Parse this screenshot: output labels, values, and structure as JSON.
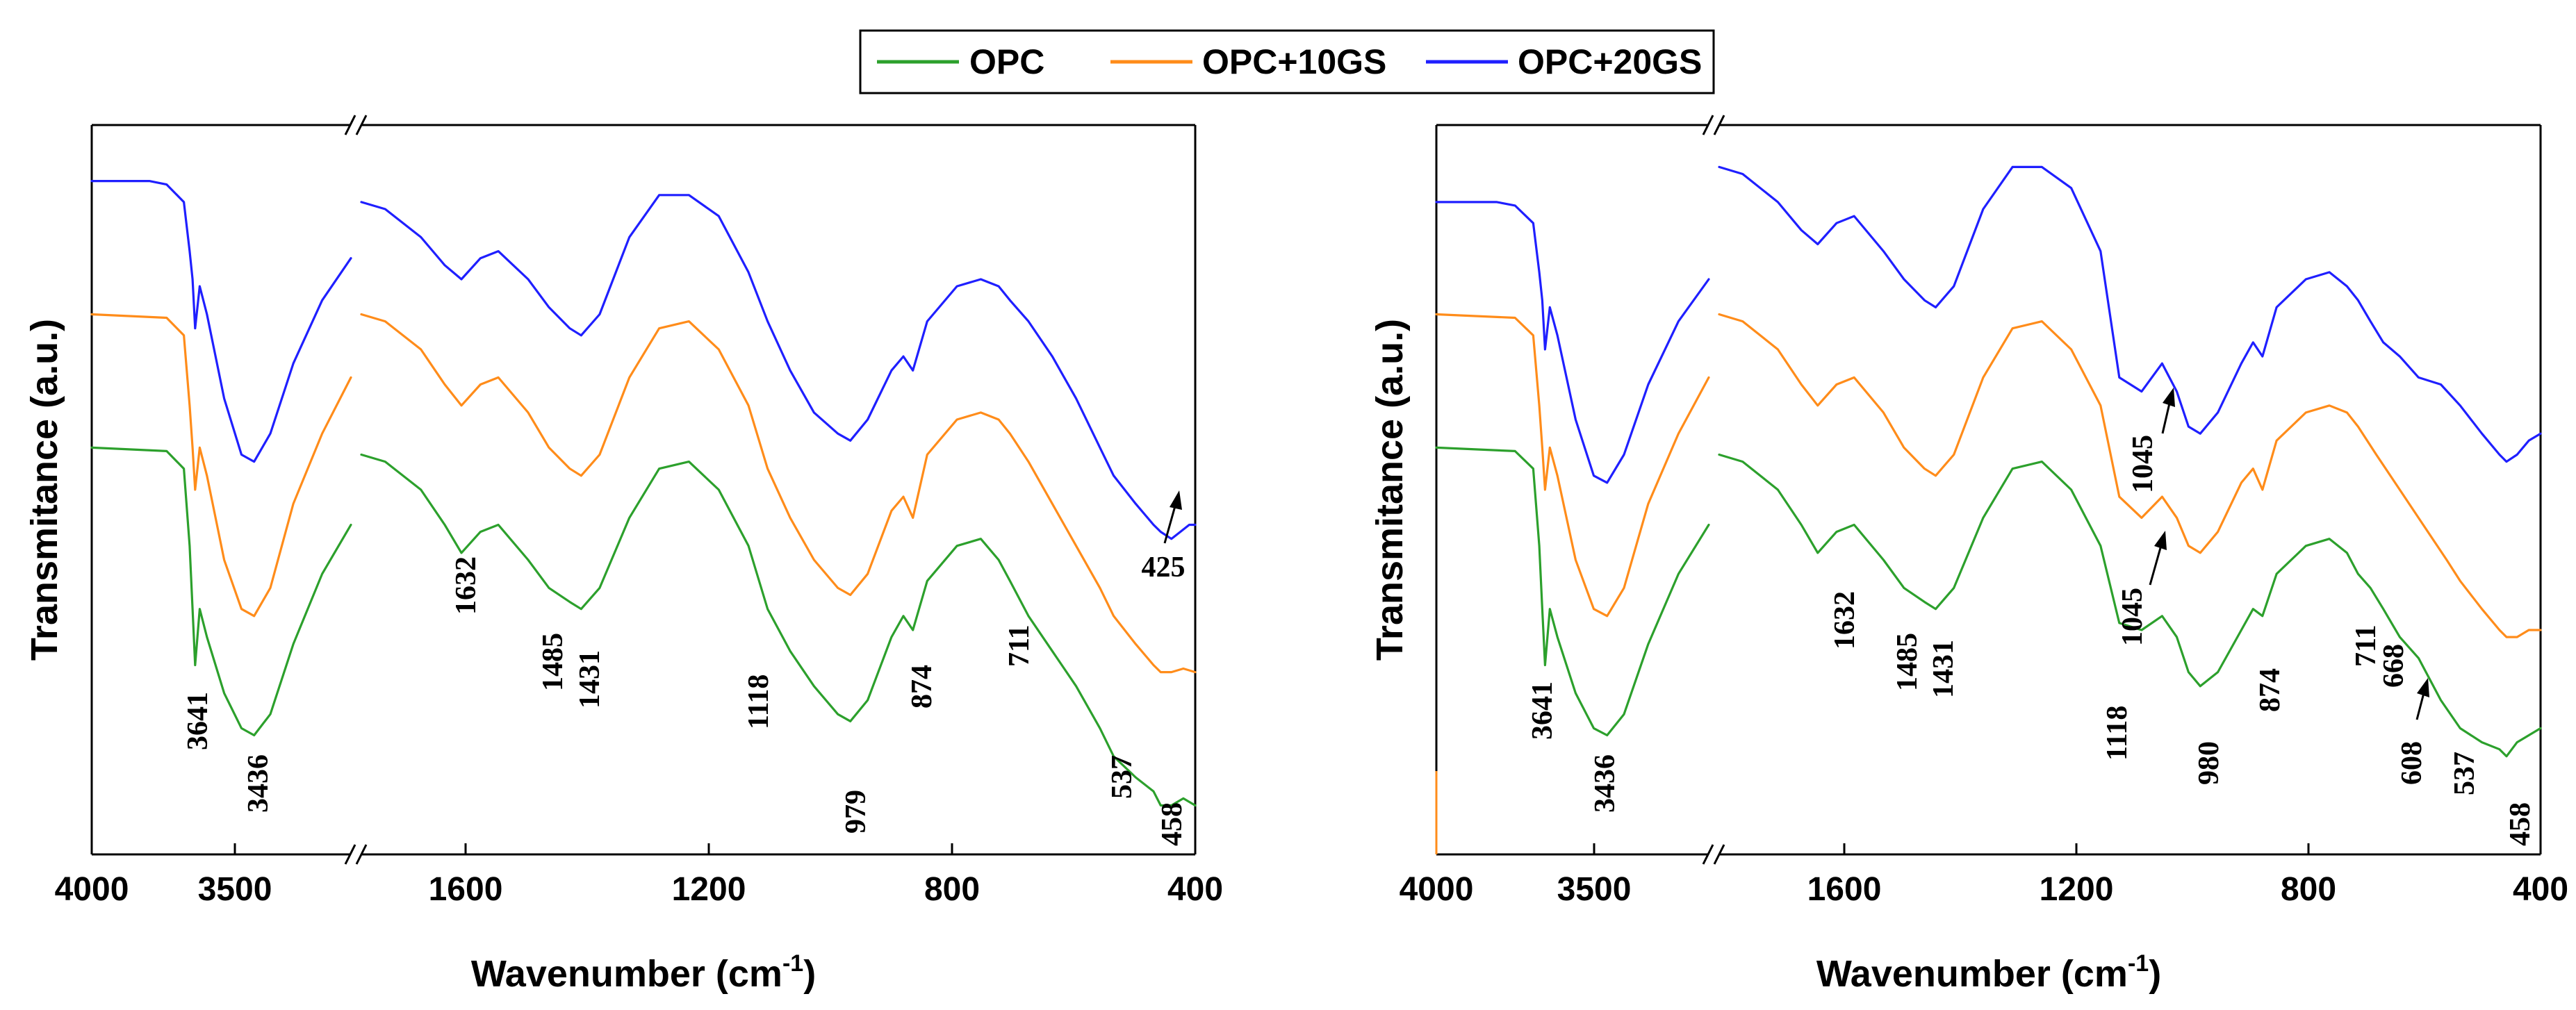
{
  "legend": {
    "entries": [
      {
        "name": "OPC",
        "color": "#2ca02c"
      },
      {
        "name": "OPC+10GS",
        "color": "#ff8c1a"
      },
      {
        "name": "OPC+20GS",
        "color": "#1f1fff"
      }
    ]
  },
  "chart_data": [
    {
      "type": "line",
      "xlabel": "Wavenumber (cm-1)",
      "ylabel": "Transmitance (a.u.)",
      "x_axis_reversed": true,
      "x_axis_break": [
        3100,
        1800
      ],
      "xlim_left_segment": [
        4000,
        3100
      ],
      "xlim_right_segment": [
        1800,
        400
      ],
      "x_ticks": [
        4000,
        3500,
        1600,
        1200,
        800,
        400
      ],
      "ylim": [
        0,
        1
      ],
      "legend_placement": "top-center",
      "grid": false,
      "series": [
        {
          "name": "OPC",
          "color": "#2ca02c",
          "x": [
            4000,
            3740,
            3680,
            3660,
            3650,
            3641,
            3625,
            3600,
            3540,
            3480,
            3436,
            3380,
            3300,
            3200,
            3100,
            1800,
            1760,
            1700,
            1660,
            1632,
            1600,
            1570,
            1520,
            1485,
            1450,
            1431,
            1400,
            1350,
            1300,
            1250,
            1200,
            1150,
            1118,
            1080,
            1040,
            1000,
            979,
            950,
            910,
            890,
            874,
            850,
            800,
            760,
            730,
            711,
            680,
            640,
            600,
            560,
            537,
            500,
            470,
            458,
            440,
            420,
            400
          ],
          "y": [
            0.56,
            0.555,
            0.53,
            0.42,
            0.33,
            0.25,
            0.33,
            0.29,
            0.21,
            0.16,
            0.15,
            0.18,
            0.28,
            0.38,
            0.45,
            0.55,
            0.54,
            0.5,
            0.45,
            0.41,
            0.44,
            0.45,
            0.4,
            0.36,
            0.34,
            0.33,
            0.36,
            0.46,
            0.53,
            0.54,
            0.5,
            0.42,
            0.33,
            0.27,
            0.22,
            0.18,
            0.17,
            0.2,
            0.29,
            0.32,
            0.3,
            0.37,
            0.42,
            0.43,
            0.4,
            0.37,
            0.32,
            0.27,
            0.22,
            0.16,
            0.12,
            0.09,
            0.07,
            0.05,
            0.05,
            0.06,
            0.05
          ]
        },
        {
          "name": "OPC+10GS",
          "color": "#ff8c1a",
          "x": [
            4000,
            3740,
            3680,
            3660,
            3650,
            3641,
            3625,
            3600,
            3540,
            3480,
            3436,
            3380,
            3300,
            3200,
            3100,
            1800,
            1760,
            1700,
            1660,
            1632,
            1600,
            1570,
            1520,
            1485,
            1450,
            1431,
            1400,
            1350,
            1300,
            1250,
            1200,
            1150,
            1118,
            1080,
            1040,
            1000,
            979,
            950,
            910,
            890,
            874,
            850,
            800,
            760,
            730,
            711,
            680,
            640,
            600,
            560,
            537,
            500,
            470,
            458,
            440,
            420,
            400
          ],
          "y": [
            0.75,
            0.745,
            0.72,
            0.62,
            0.56,
            0.5,
            0.56,
            0.52,
            0.4,
            0.33,
            0.32,
            0.36,
            0.48,
            0.58,
            0.66,
            0.75,
            0.74,
            0.7,
            0.65,
            0.62,
            0.65,
            0.66,
            0.61,
            0.56,
            0.53,
            0.52,
            0.55,
            0.66,
            0.73,
            0.74,
            0.7,
            0.62,
            0.53,
            0.46,
            0.4,
            0.36,
            0.35,
            0.38,
            0.47,
            0.49,
            0.46,
            0.55,
            0.6,
            0.61,
            0.6,
            0.58,
            0.54,
            0.48,
            0.42,
            0.36,
            0.32,
            0.28,
            0.25,
            0.24,
            0.24,
            0.245,
            0.24
          ]
        },
        {
          "name": "OPC+20GS",
          "color": "#1f1fff",
          "x": [
            4000,
            3800,
            3740,
            3680,
            3660,
            3650,
            3641,
            3625,
            3600,
            3540,
            3480,
            3436,
            3380,
            3300,
            3200,
            3100,
            1800,
            1760,
            1700,
            1660,
            1632,
            1600,
            1570,
            1520,
            1485,
            1450,
            1431,
            1400,
            1350,
            1300,
            1250,
            1200,
            1150,
            1118,
            1080,
            1040,
            1000,
            979,
            950,
            910,
            890,
            874,
            850,
            800,
            760,
            730,
            711,
            680,
            640,
            600,
            560,
            537,
            500,
            470,
            458,
            440,
            425,
            410,
            400
          ],
          "y": [
            0.94,
            0.94,
            0.935,
            0.91,
            0.84,
            0.8,
            0.73,
            0.79,
            0.75,
            0.63,
            0.55,
            0.54,
            0.58,
            0.68,
            0.77,
            0.83,
            0.91,
            0.9,
            0.86,
            0.82,
            0.8,
            0.83,
            0.84,
            0.8,
            0.76,
            0.73,
            0.72,
            0.75,
            0.86,
            0.92,
            0.92,
            0.89,
            0.81,
            0.74,
            0.67,
            0.61,
            0.58,
            0.57,
            0.6,
            0.67,
            0.69,
            0.67,
            0.74,
            0.79,
            0.8,
            0.79,
            0.77,
            0.74,
            0.69,
            0.63,
            0.56,
            0.52,
            0.48,
            0.45,
            0.44,
            0.43,
            0.44,
            0.45,
            0.45
          ]
        }
      ],
      "annotations": [
        {
          "text": "3641",
          "x": 3641
        },
        {
          "text": "3436",
          "x": 3436
        },
        {
          "text": "1632",
          "x": 1632
        },
        {
          "text": "1485",
          "x": 1485
        },
        {
          "text": "1431",
          "x": 1431
        },
        {
          "text": "1118",
          "x": 1118
        },
        {
          "text": "979",
          "x": 979
        },
        {
          "text": "874",
          "x": 874
        },
        {
          "text": "711",
          "x": 711
        },
        {
          "text": "537",
          "x": 537
        },
        {
          "text": "458",
          "x": 458
        },
        {
          "text": "425",
          "x": 425,
          "arrow": true
        }
      ]
    },
    {
      "type": "line",
      "xlabel": "Wavenumber (cm-1)",
      "ylabel": "Transmitance (a.u.)",
      "x_axis_reversed": true,
      "x_axis_break": [
        3100,
        1800
      ],
      "xlim_left_segment": [
        4000,
        3100
      ],
      "xlim_right_segment": [
        1800,
        400
      ],
      "x_ticks": [
        4000,
        3500,
        1600,
        1200,
        800,
        400
      ],
      "ylim": [
        0,
        1
      ],
      "grid": false,
      "series": [
        {
          "name": "OPC",
          "color": "#2ca02c",
          "x": [
            4000,
            3740,
            3680,
            3660,
            3650,
            3641,
            3625,
            3600,
            3540,
            3480,
            3436,
            3380,
            3300,
            3200,
            3100,
            1800,
            1760,
            1700,
            1660,
            1632,
            1600,
            1570,
            1520,
            1485,
            1450,
            1431,
            1400,
            1350,
            1300,
            1250,
            1200,
            1150,
            1118,
            1080,
            1045,
            1020,
            1000,
            980,
            950,
            910,
            890,
            874,
            850,
            800,
            760,
            730,
            711,
            690,
            668,
            640,
            608,
            570,
            537,
            500,
            470,
            458,
            440,
            420,
            400
          ],
          "y": [
            0.56,
            0.555,
            0.53,
            0.42,
            0.33,
            0.25,
            0.33,
            0.29,
            0.21,
            0.16,
            0.15,
            0.18,
            0.28,
            0.38,
            0.45,
            0.55,
            0.54,
            0.5,
            0.45,
            0.41,
            0.44,
            0.45,
            0.4,
            0.36,
            0.34,
            0.33,
            0.36,
            0.46,
            0.53,
            0.54,
            0.5,
            0.42,
            0.31,
            0.3,
            0.32,
            0.29,
            0.24,
            0.22,
            0.24,
            0.3,
            0.33,
            0.32,
            0.38,
            0.42,
            0.43,
            0.41,
            0.38,
            0.36,
            0.33,
            0.29,
            0.26,
            0.2,
            0.16,
            0.14,
            0.13,
            0.12,
            0.14,
            0.15,
            0.16
          ]
        },
        {
          "name": "OPC+10GS",
          "color": "#ff8c1a",
          "x": [
            4000,
            3740,
            3680,
            3660,
            3650,
            3641,
            3625,
            3600,
            3540,
            3480,
            3436,
            3380,
            3300,
            3200,
            3100,
            1800,
            1760,
            1700,
            1660,
            1632,
            1600,
            1570,
            1520,
            1485,
            1450,
            1431,
            1400,
            1350,
            1300,
            1250,
            1200,
            1150,
            1118,
            1080,
            1045,
            1020,
            1000,
            980,
            950,
            910,
            890,
            874,
            850,
            800,
            760,
            730,
            711,
            680,
            640,
            600,
            560,
            537,
            500,
            470,
            458,
            440,
            420,
            400
          ],
          "y": [
            0.75,
            0.745,
            0.72,
            0.62,
            0.56,
            0.5,
            0.56,
            0.52,
            0.4,
            0.33,
            0.32,
            0.36,
            0.48,
            0.58,
            0.66,
            0.75,
            0.74,
            0.7,
            0.65,
            0.62,
            0.65,
            0.66,
            0.61,
            0.56,
            0.53,
            0.52,
            0.55,
            0.66,
            0.73,
            0.74,
            0.7,
            0.62,
            0.49,
            0.46,
            0.49,
            0.46,
            0.42,
            0.41,
            0.44,
            0.51,
            0.53,
            0.5,
            0.57,
            0.61,
            0.62,
            0.61,
            0.59,
            0.55,
            0.5,
            0.45,
            0.4,
            0.37,
            0.33,
            0.3,
            0.29,
            0.29,
            0.3,
            0.3
          ]
        },
        {
          "name": "OPC+20GS",
          "color": "#1f1fff",
          "x": [
            4000,
            3800,
            3740,
            3680,
            3660,
            3650,
            3641,
            3625,
            3600,
            3540,
            3480,
            3436,
            3380,
            3300,
            3200,
            3100,
            1800,
            1760,
            1700,
            1660,
            1632,
            1600,
            1570,
            1520,
            1485,
            1450,
            1431,
            1400,
            1350,
            1300,
            1250,
            1200,
            1150,
            1118,
            1080,
            1045,
            1020,
            1000,
            980,
            950,
            910,
            890,
            874,
            850,
            800,
            760,
            730,
            711,
            690,
            668,
            640,
            608,
            570,
            537,
            500,
            470,
            458,
            440,
            420,
            400
          ],
          "y": [
            0.91,
            0.91,
            0.905,
            0.88,
            0.81,
            0.77,
            0.7,
            0.76,
            0.72,
            0.6,
            0.52,
            0.51,
            0.55,
            0.65,
            0.74,
            0.8,
            0.96,
            0.95,
            0.91,
            0.87,
            0.85,
            0.88,
            0.89,
            0.84,
            0.8,
            0.77,
            0.76,
            0.79,
            0.9,
            0.96,
            0.96,
            0.93,
            0.84,
            0.66,
            0.64,
            0.68,
            0.64,
            0.59,
            0.58,
            0.61,
            0.68,
            0.71,
            0.69,
            0.76,
            0.8,
            0.81,
            0.79,
            0.77,
            0.74,
            0.71,
            0.69,
            0.66,
            0.65,
            0.62,
            0.58,
            0.55,
            0.54,
            0.55,
            0.57,
            0.58
          ]
        }
      ],
      "annotations": [
        {
          "text": "3641",
          "x": 3641
        },
        {
          "text": "3436",
          "x": 3436
        },
        {
          "text": "1632",
          "x": 1632
        },
        {
          "text": "1485",
          "x": 1485
        },
        {
          "text": "1431",
          "x": 1431
        },
        {
          "text": "1118",
          "x": 1118
        },
        {
          "text": "1045",
          "x": 1045,
          "arrow": true,
          "series": "OPC"
        },
        {
          "text": "1045",
          "x": 1045,
          "arrow": true,
          "series": "OPC+20GS"
        },
        {
          "text": "980",
          "x": 980
        },
        {
          "text": "874",
          "x": 874
        },
        {
          "text": "711",
          "x": 711
        },
        {
          "text": "668",
          "x": 668
        },
        {
          "text": "608",
          "x": 608,
          "arrow": true
        },
        {
          "text": "537",
          "x": 537
        },
        {
          "text": "458",
          "x": 458
        }
      ]
    }
  ]
}
